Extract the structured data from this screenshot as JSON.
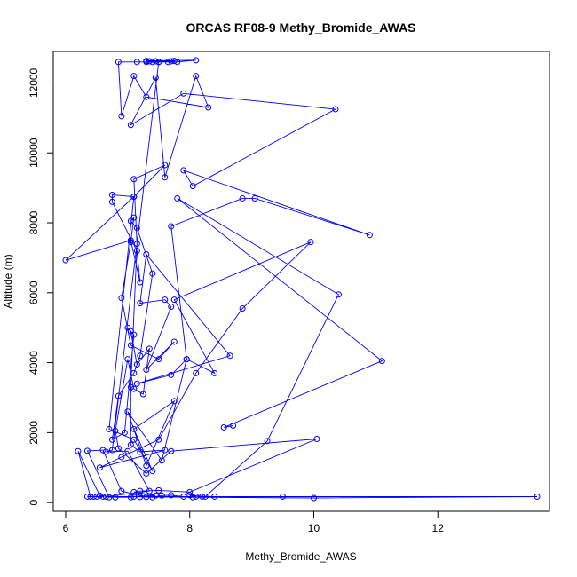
{
  "chart_data": {
    "type": "line",
    "title": "ORCAS RF08-9 Methy_Bromide_AWAS",
    "xlabel": "Methy_Bromide_AWAS",
    "ylabel": "Altitude (m)",
    "xlim": [
      5.8,
      13.8
    ],
    "ylim": [
      -250,
      12900
    ],
    "xticks": [
      6,
      8,
      10,
      12
    ],
    "yticks": [
      0,
      2000,
      4000,
      6000,
      8000,
      10000,
      12000
    ],
    "grid": false,
    "line_color": "#0000ff",
    "marker": "open-circle",
    "series": [
      {
        "points": [
          [
            6.35,
            170
          ],
          [
            6.45,
            170
          ],
          [
            6.6,
            170
          ],
          [
            6.5,
            170
          ],
          [
            6.4,
            170
          ],
          [
            6.2,
            1470
          ],
          [
            6.55,
            200
          ],
          [
            6.8,
            150
          ],
          [
            7.05,
            150
          ],
          [
            7.1,
            170
          ],
          [
            7.2,
            160
          ],
          [
            7.4,
            150
          ],
          [
            7.55,
            200
          ],
          [
            7.7,
            210
          ],
          [
            7.9,
            170
          ],
          [
            8.05,
            150
          ],
          [
            8.2,
            170
          ],
          [
            8.4,
            170
          ],
          [
            9.5,
            170
          ],
          [
            13.6,
            170
          ],
          [
            10.0,
            130
          ],
          [
            7.3,
            160
          ],
          [
            6.9,
            330
          ],
          [
            6.6,
            1500
          ],
          [
            6.35,
            1480
          ],
          [
            6.7,
            150
          ],
          [
            7.45,
            200
          ],
          [
            7.1,
            300
          ],
          [
            7.2,
            330
          ],
          [
            7.5,
            350
          ],
          [
            8.0,
            300
          ],
          [
            10.05,
            1820
          ],
          [
            7.7,
            1470
          ],
          [
            7.3,
            830
          ],
          [
            6.85,
            1550
          ],
          [
            6.8,
            2050
          ],
          [
            7.0,
            4100
          ],
          [
            7.1,
            3250
          ],
          [
            7.25,
            3100
          ],
          [
            7.35,
            4400
          ],
          [
            7.15,
            3950
          ],
          [
            7.05,
            4900
          ],
          [
            7.0,
            5000
          ],
          [
            7.1,
            4800
          ],
          [
            6.95,
            2000
          ],
          [
            6.75,
            1800
          ],
          [
            6.85,
            3050
          ],
          [
            7.1,
            3700
          ],
          [
            7.2,
            4200
          ],
          [
            7.4,
            6550
          ],
          [
            7.15,
            7850
          ],
          [
            7.05,
            8050
          ],
          [
            7.1,
            8150
          ],
          [
            7.05,
            7450
          ],
          [
            6.9,
            5850
          ],
          [
            7.05,
            4500
          ],
          [
            7.5,
            4100
          ],
          [
            7.75,
            4600
          ],
          [
            7.3,
            3800
          ],
          [
            7.7,
            5600
          ],
          [
            7.6,
            5800
          ],
          [
            7.2,
            5700
          ],
          [
            7.3,
            7100
          ],
          [
            8.65,
            4200
          ],
          [
            7.15,
            3400
          ],
          [
            7.7,
            3650
          ],
          [
            7.95,
            4100
          ],
          [
            7.55,
            1200
          ],
          [
            7.0,
            2600
          ],
          [
            7.3,
            1050
          ],
          [
            7.75,
            2900
          ],
          [
            7.1,
            2100
          ],
          [
            7.4,
            900
          ],
          [
            7.1,
            1800
          ],
          [
            6.7,
            2100
          ],
          [
            7.1,
            8750
          ],
          [
            6.75,
            8800
          ],
          [
            6.75,
            8600
          ],
          [
            7.15,
            7200
          ],
          [
            7.2,
            6300
          ],
          [
            7.05,
            7500
          ],
          [
            6.0,
            6930
          ],
          [
            7.1,
            8750
          ],
          [
            7.6,
            9650
          ],
          [
            7.1,
            9250
          ],
          [
            7.15,
            7400
          ],
          [
            7.05,
            3300
          ],
          [
            7.05,
            1650
          ],
          [
            7.2,
            1450
          ],
          [
            7.6,
            1500
          ],
          [
            6.55,
            1000
          ],
          [
            6.9,
            1300
          ],
          [
            7.5,
            1800
          ],
          [
            8.1,
            3700
          ],
          [
            8.85,
            5550
          ],
          [
            9.95,
            7450
          ],
          [
            7.75,
            5800
          ],
          [
            8.4,
            3700
          ],
          [
            7.95,
            4100
          ],
          [
            7.7,
            7900
          ],
          [
            8.85,
            8700
          ],
          [
            9.05,
            8700
          ],
          [
            10.9,
            7650
          ],
          [
            7.9,
            9500
          ],
          [
            8.05,
            9050
          ],
          [
            10.35,
            11250
          ],
          [
            7.9,
            11700
          ],
          [
            7.05,
            10800
          ],
          [
            7.45,
            12150
          ],
          [
            7.6,
            9300
          ],
          [
            8.1,
            12200
          ],
          [
            8.3,
            11300
          ],
          [
            7.3,
            11600
          ],
          [
            7.1,
            12200
          ],
          [
            6.9,
            11050
          ],
          [
            6.85,
            12600
          ],
          [
            7.15,
            12600
          ],
          [
            7.3,
            12600
          ],
          [
            7.4,
            12600
          ],
          [
            7.5,
            12600
          ],
          [
            7.65,
            12600
          ],
          [
            7.8,
            12600
          ],
          [
            8.1,
            12650
          ],
          [
            7.3,
            12630
          ],
          [
            7.35,
            12620
          ],
          [
            7.45,
            12620
          ],
          [
            7.7,
            12620
          ],
          [
            7.75,
            12630
          ],
          [
            7.5,
            12600
          ],
          [
            6.75,
            1500
          ],
          [
            6.65,
            1450
          ],
          [
            7.0,
            1470
          ],
          [
            7.35,
            330
          ],
          [
            6.65,
            170
          ],
          [
            8.1,
            170
          ],
          [
            8.0,
            210
          ],
          [
            8.25,
            170
          ],
          [
            9.25,
            1760
          ],
          [
            10.4,
            5950
          ],
          [
            7.8,
            8700
          ],
          [
            11.1,
            4050
          ],
          [
            8.55,
            2150
          ],
          [
            8.7,
            2200
          ]
        ]
      }
    ]
  }
}
